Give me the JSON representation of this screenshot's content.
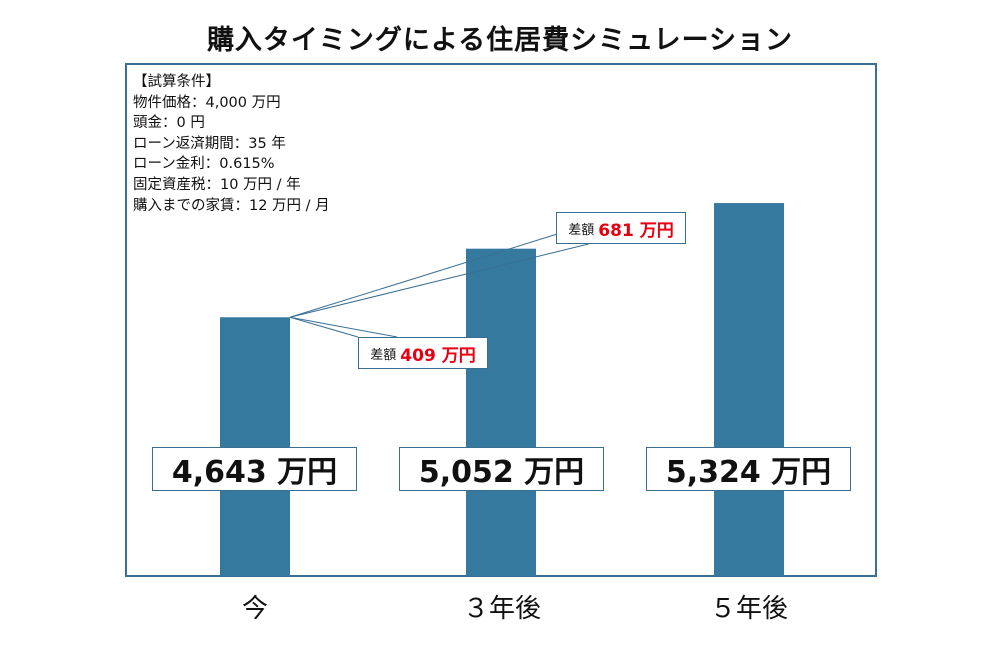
{
  "chart_data": {
    "type": "bar",
    "title": "購入タイミングによる住居費シミュレーション",
    "categories": [
      "今",
      "３年後",
      "５年後"
    ],
    "values": [
      4643,
      5052,
      5324
    ],
    "value_labels": [
      "4,643 万円",
      "5,052 万円",
      "5,324 万円"
    ],
    "ylim": [
      3100,
      5390
    ],
    "color": "#36799f",
    "conditions": [
      "【試算条件】",
      "物件価格：4,000 万円",
      "頭金：0 円",
      "ローン返済期間：35 年",
      "ローン金利：0.615%",
      "固定資産税：10 万円 / 年",
      "購入までの家賃：12 万円 / 月"
    ],
    "annotations": [
      {
        "label": "差額",
        "value": "409 万円",
        "from_category": "今",
        "to_category": "３年後"
      },
      {
        "label": "差額",
        "value": "681 万円",
        "from_category": "今",
        "to_category": "５年後"
      }
    ]
  }
}
